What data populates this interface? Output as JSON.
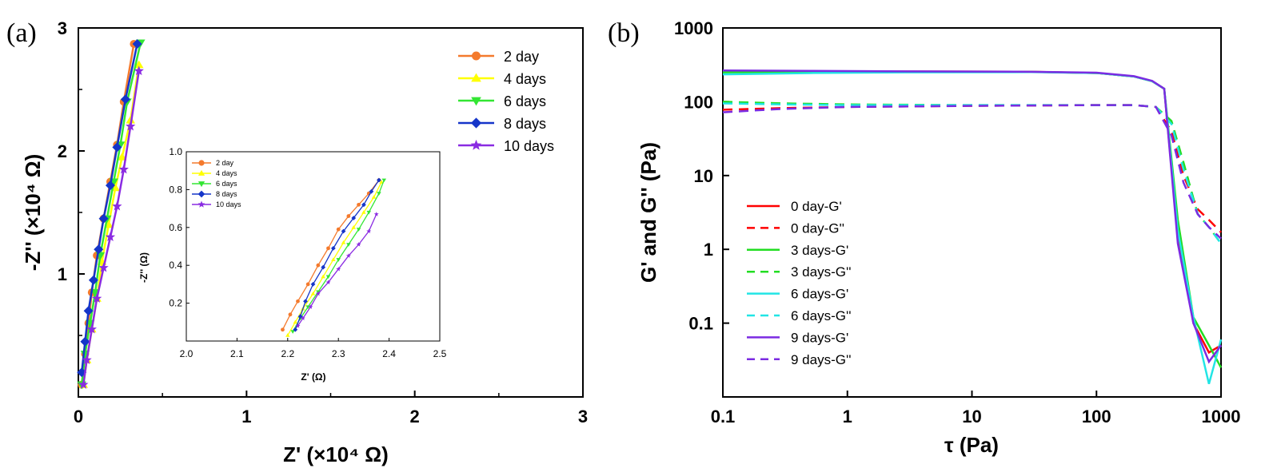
{
  "chart_data": [
    {
      "panel_label": "(a)",
      "type": "line",
      "xlabel": "Z' (×10⁴ Ω)",
      "ylabel": "-Z'' (×10⁴ Ω)",
      "xlim": [
        0,
        3
      ],
      "ylim": [
        0,
        3
      ],
      "xticks": [
        "0",
        "1",
        "2",
        "3"
      ],
      "yticks": [
        "1",
        "2",
        "3"
      ],
      "legend_position": "top-right",
      "series": [
        {
          "name": "2 day",
          "color": "#f47a2d",
          "marker": "circle",
          "x": [
            0.02,
            0.04,
            0.06,
            0.08,
            0.11,
            0.15,
            0.19,
            0.23,
            0.27,
            0.33
          ],
          "y": [
            0.1,
            0.35,
            0.6,
            0.85,
            1.15,
            1.45,
            1.75,
            2.05,
            2.4,
            2.87
          ]
        },
        {
          "name": "4 days",
          "color": "#ffff00",
          "marker": "triangle-up",
          "x": [
            0.03,
            0.05,
            0.08,
            0.11,
            0.14,
            0.18,
            0.22,
            0.26,
            0.31,
            0.36
          ],
          "y": [
            0.1,
            0.3,
            0.55,
            0.8,
            1.1,
            1.4,
            1.7,
            1.95,
            2.25,
            2.7
          ]
        },
        {
          "name": "6 days",
          "color": "#33e633",
          "marker": "triangle-down",
          "x": [
            0.02,
            0.04,
            0.07,
            0.1,
            0.13,
            0.17,
            0.21,
            0.25,
            0.29,
            0.37
          ],
          "y": [
            0.1,
            0.35,
            0.6,
            0.85,
            1.15,
            1.45,
            1.75,
            2.05,
            2.4,
            2.88
          ]
        },
        {
          "name": "8 days",
          "color": "#1535c9",
          "marker": "diamond",
          "x": [
            0.02,
            0.04,
            0.06,
            0.09,
            0.12,
            0.15,
            0.19,
            0.23,
            0.28,
            0.35
          ],
          "y": [
            0.2,
            0.45,
            0.7,
            0.95,
            1.2,
            1.45,
            1.72,
            2.03,
            2.42,
            2.87
          ]
        },
        {
          "name": "10 days",
          "color": "#8a2be2",
          "marker": "star",
          "x": [
            0.03,
            0.05,
            0.08,
            0.11,
            0.15,
            0.19,
            0.23,
            0.27,
            0.31,
            0.36
          ],
          "y": [
            0.1,
            0.3,
            0.55,
            0.8,
            1.05,
            1.3,
            1.55,
            1.85,
            2.2,
            2.65
          ]
        }
      ],
      "inset": {
        "xlabel": "Z' (Ω)",
        "ylabel": "-Z'' (Ω)",
        "xlim": [
          2.0,
          2.5
        ],
        "ylim": [
          0.0,
          1.0
        ],
        "xticks": [
          "2.0",
          "2.1",
          "2.2",
          "2.3",
          "2.4",
          "2.5"
        ],
        "yticks": [
          "0.2",
          "0.4",
          "0.6",
          "0.8",
          "1.0"
        ],
        "series": [
          {
            "name": "2 day",
            "color": "#f47a2d",
            "marker": "circle",
            "x": [
              2.19,
              2.205,
              2.22,
              2.24,
              2.26,
              2.28,
              2.3,
              2.32,
              2.34,
              2.36,
              2.38
            ],
            "y": [
              0.06,
              0.14,
              0.21,
              0.3,
              0.4,
              0.49,
              0.59,
              0.66,
              0.72,
              0.78,
              0.85
            ]
          },
          {
            "name": "4 days",
            "color": "#ffff00",
            "marker": "triangle-up",
            "x": [
              2.2,
              2.215,
              2.23,
              2.25,
              2.27,
              2.29,
              2.31,
              2.33,
              2.35,
              2.37,
              2.385
            ],
            "y": [
              0.03,
              0.1,
              0.17,
              0.25,
              0.34,
              0.43,
              0.52,
              0.6,
              0.68,
              0.76,
              0.84
            ]
          },
          {
            "name": "6 days",
            "color": "#33e633",
            "marker": "triangle-down",
            "x": [
              2.21,
              2.225,
              2.24,
              2.26,
              2.28,
              2.3,
              2.32,
              2.34,
              2.36,
              2.38,
              2.39
            ],
            "y": [
              0.05,
              0.12,
              0.18,
              0.26,
              0.34,
              0.43,
              0.51,
              0.59,
              0.68,
              0.78,
              0.85
            ]
          },
          {
            "name": "8 days",
            "color": "#1535c9",
            "marker": "diamond",
            "x": [
              2.215,
              2.225,
              2.235,
              2.25,
              2.27,
              2.29,
              2.31,
              2.33,
              2.35,
              2.365,
              2.38
            ],
            "y": [
              0.06,
              0.13,
              0.21,
              0.3,
              0.39,
              0.49,
              0.58,
              0.65,
              0.72,
              0.79,
              0.85
            ]
          },
          {
            "name": "10 days",
            "color": "#8a2be2",
            "marker": "star",
            "x": [
              2.22,
              2.23,
              2.245,
              2.26,
              2.28,
              2.3,
              2.32,
              2.34,
              2.36,
              2.375
            ],
            "y": [
              0.08,
              0.12,
              0.18,
              0.25,
              0.31,
              0.38,
              0.45,
              0.51,
              0.58,
              0.67
            ]
          }
        ]
      }
    },
    {
      "panel_label": "(b)",
      "type": "line",
      "xlabel": "τ (Pa)",
      "ylabel": "G' and G'' (Pa)",
      "xscale": "log",
      "yscale": "log",
      "xlim": [
        0.1,
        1000
      ],
      "ylim": [
        0.01,
        1000
      ],
      "xticks": [
        "0.1",
        "1",
        "10",
        "100",
        "1000"
      ],
      "yticks": [
        "0.1",
        "1",
        "10",
        "100",
        "1000"
      ],
      "legend_position": "bottom-left",
      "series": [
        {
          "name": "0 day-G'",
          "color": "#ff0000",
          "dash": false,
          "x": [
            0.1,
            0.5,
            3,
            30,
            100,
            200,
            280,
            350,
            450,
            600,
            800,
            1000
          ],
          "y": [
            255,
            258,
            257,
            255,
            245,
            220,
            190,
            150,
            1.5,
            0.1,
            0.04,
            0.05
          ]
        },
        {
          "name": "0 day-G''",
          "color": "#ff0000",
          "dash": true,
          "x": [
            0.1,
            0.3,
            1,
            10,
            100,
            200,
            300,
            400,
            500,
            650,
            800,
            1000
          ],
          "y": [
            78,
            82,
            85,
            88,
            90,
            90,
            85,
            40,
            10,
            3.5,
            2.5,
            1.7
          ]
        },
        {
          "name": "3 days-G'",
          "color": "#22dd22",
          "dash": false,
          "x": [
            0.1,
            0.5,
            3,
            30,
            100,
            200,
            280,
            350,
            450,
            600,
            800,
            1000
          ],
          "y": [
            250,
            255,
            255,
            254,
            245,
            220,
            190,
            150,
            2.5,
            0.12,
            0.05,
            0.025
          ]
        },
        {
          "name": "3 days-G''",
          "color": "#22dd22",
          "dash": true,
          "x": [
            0.1,
            0.3,
            1,
            10,
            100,
            200,
            300,
            400,
            500,
            650,
            800,
            1000
          ],
          "y": [
            100,
            95,
            92,
            90,
            90,
            90,
            85,
            55,
            15,
            3,
            2,
            1.2
          ]
        },
        {
          "name": "6 days-G'",
          "color": "#22e5e5",
          "dash": false,
          "x": [
            0.1,
            0.5,
            3,
            30,
            100,
            200,
            280,
            350,
            450,
            600,
            800,
            1000
          ],
          "y": [
            235,
            245,
            250,
            252,
            245,
            220,
            190,
            150,
            1.8,
            0.12,
            0.015,
            0.06
          ]
        },
        {
          "name": "6 days-G''",
          "color": "#22e5e5",
          "dash": true,
          "x": [
            0.1,
            0.3,
            1,
            10,
            100,
            200,
            300,
            400,
            500,
            650,
            800,
            1000
          ],
          "y": [
            95,
            92,
            90,
            90,
            90,
            90,
            85,
            50,
            12,
            3,
            2,
            1.2
          ]
        },
        {
          "name": "9 days-G'",
          "color": "#7b2be2",
          "dash": false,
          "x": [
            0.1,
            0.5,
            3,
            30,
            100,
            200,
            280,
            350,
            450,
            600,
            800,
            1000
          ],
          "y": [
            265,
            262,
            258,
            255,
            248,
            222,
            192,
            150,
            1.2,
            0.1,
            0.03,
            0.05
          ]
        },
        {
          "name": "9 days-G''",
          "color": "#7b2be2",
          "dash": true,
          "x": [
            0.1,
            0.3,
            1,
            10,
            100,
            200,
            300,
            400,
            500,
            650,
            800,
            1000
          ],
          "y": [
            72,
            80,
            85,
            88,
            90,
            90,
            85,
            35,
            8,
            3,
            2,
            1.4
          ]
        }
      ]
    }
  ]
}
